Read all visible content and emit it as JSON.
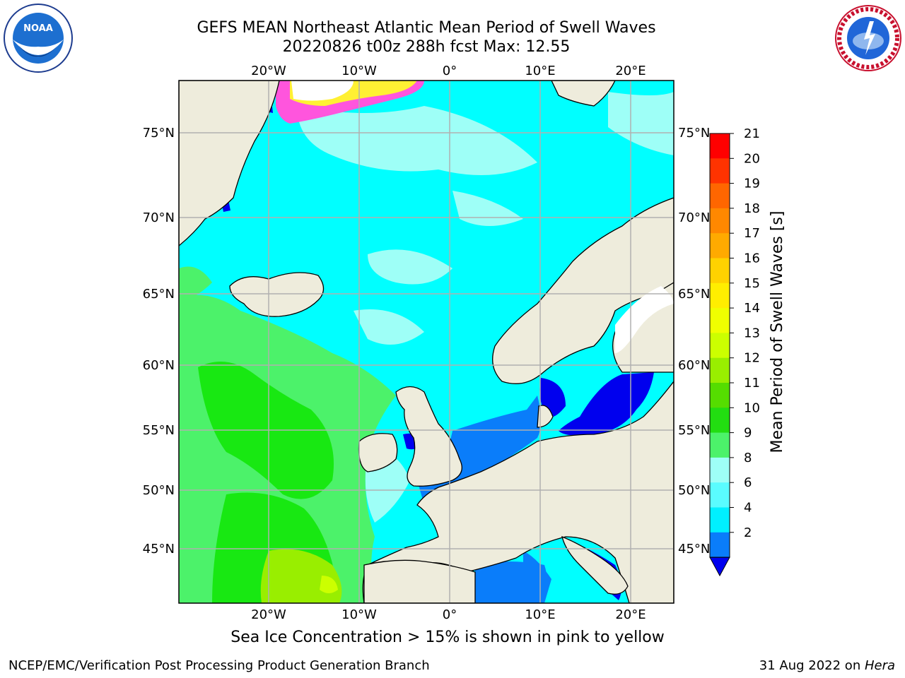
{
  "title": {
    "line1": "GEFS MEAN Northeast Atlantic Mean Period of Swell Waves",
    "line2": "20220826 t00z 288h fcst   Max: 12.55"
  },
  "logos": {
    "left": {
      "icon": "noaa-logo",
      "text": "NOAA",
      "ring_text": "NATIONAL OCEANIC AND ATMOSPHERIC ADMINISTRATION · U.S. DEPARTMENT OF COMMERCE"
    },
    "right": {
      "icon": "national-weather-service-logo",
      "ring_text": "NATIONAL WEATHER SERVICE"
    }
  },
  "map": {
    "lon_labels": [
      "20°W",
      "10°W",
      "0°",
      "10°E",
      "20°E"
    ],
    "lat_labels": [
      "75°N",
      "70°N",
      "65°N",
      "60°N",
      "55°N",
      "50°N",
      "45°N"
    ],
    "colors": {
      "land": "#eeecdc",
      "ocean_base": "#00ffff",
      "swell_light": "#9efff7",
      "swell_green": "#4cf26a",
      "swell_bright_green": "#18e812",
      "shallow_blue": "#0a7dfa",
      "deep_blue": "#0000ee",
      "ice_pink": "#ff55dd",
      "ice_yellow": "#fff033",
      "gridline": "#b0b0b0"
    }
  },
  "colorbar": {
    "label": "Mean Period of Swell Waves [s]",
    "ticks": [
      "21",
      "20",
      "19",
      "18",
      "17",
      "16",
      "15",
      "14",
      "13",
      "12",
      "11",
      "10",
      "9",
      "8",
      "6",
      "4",
      "2"
    ],
    "colors": [
      "#ff0000",
      "#ff3300",
      "#ff6600",
      "#ff8800",
      "#ffaa00",
      "#ffd200",
      "#ffee00",
      "#f0ff00",
      "#ccff00",
      "#99ee00",
      "#55dd00",
      "#22dd11",
      "#4cf26a",
      "#9efff7",
      "#5afcff",
      "#00f0ff",
      "#0a7dfa"
    ],
    "extend_color": "#0000ee"
  },
  "caption": "Sea Ice Concentration > 15% is shown in pink to yellow",
  "footer": {
    "left": "NCEP/EMC/Verification Post Processing Product Generation Branch",
    "right_prefix": "31 Aug 2022 on ",
    "right_host": "Hera"
  }
}
